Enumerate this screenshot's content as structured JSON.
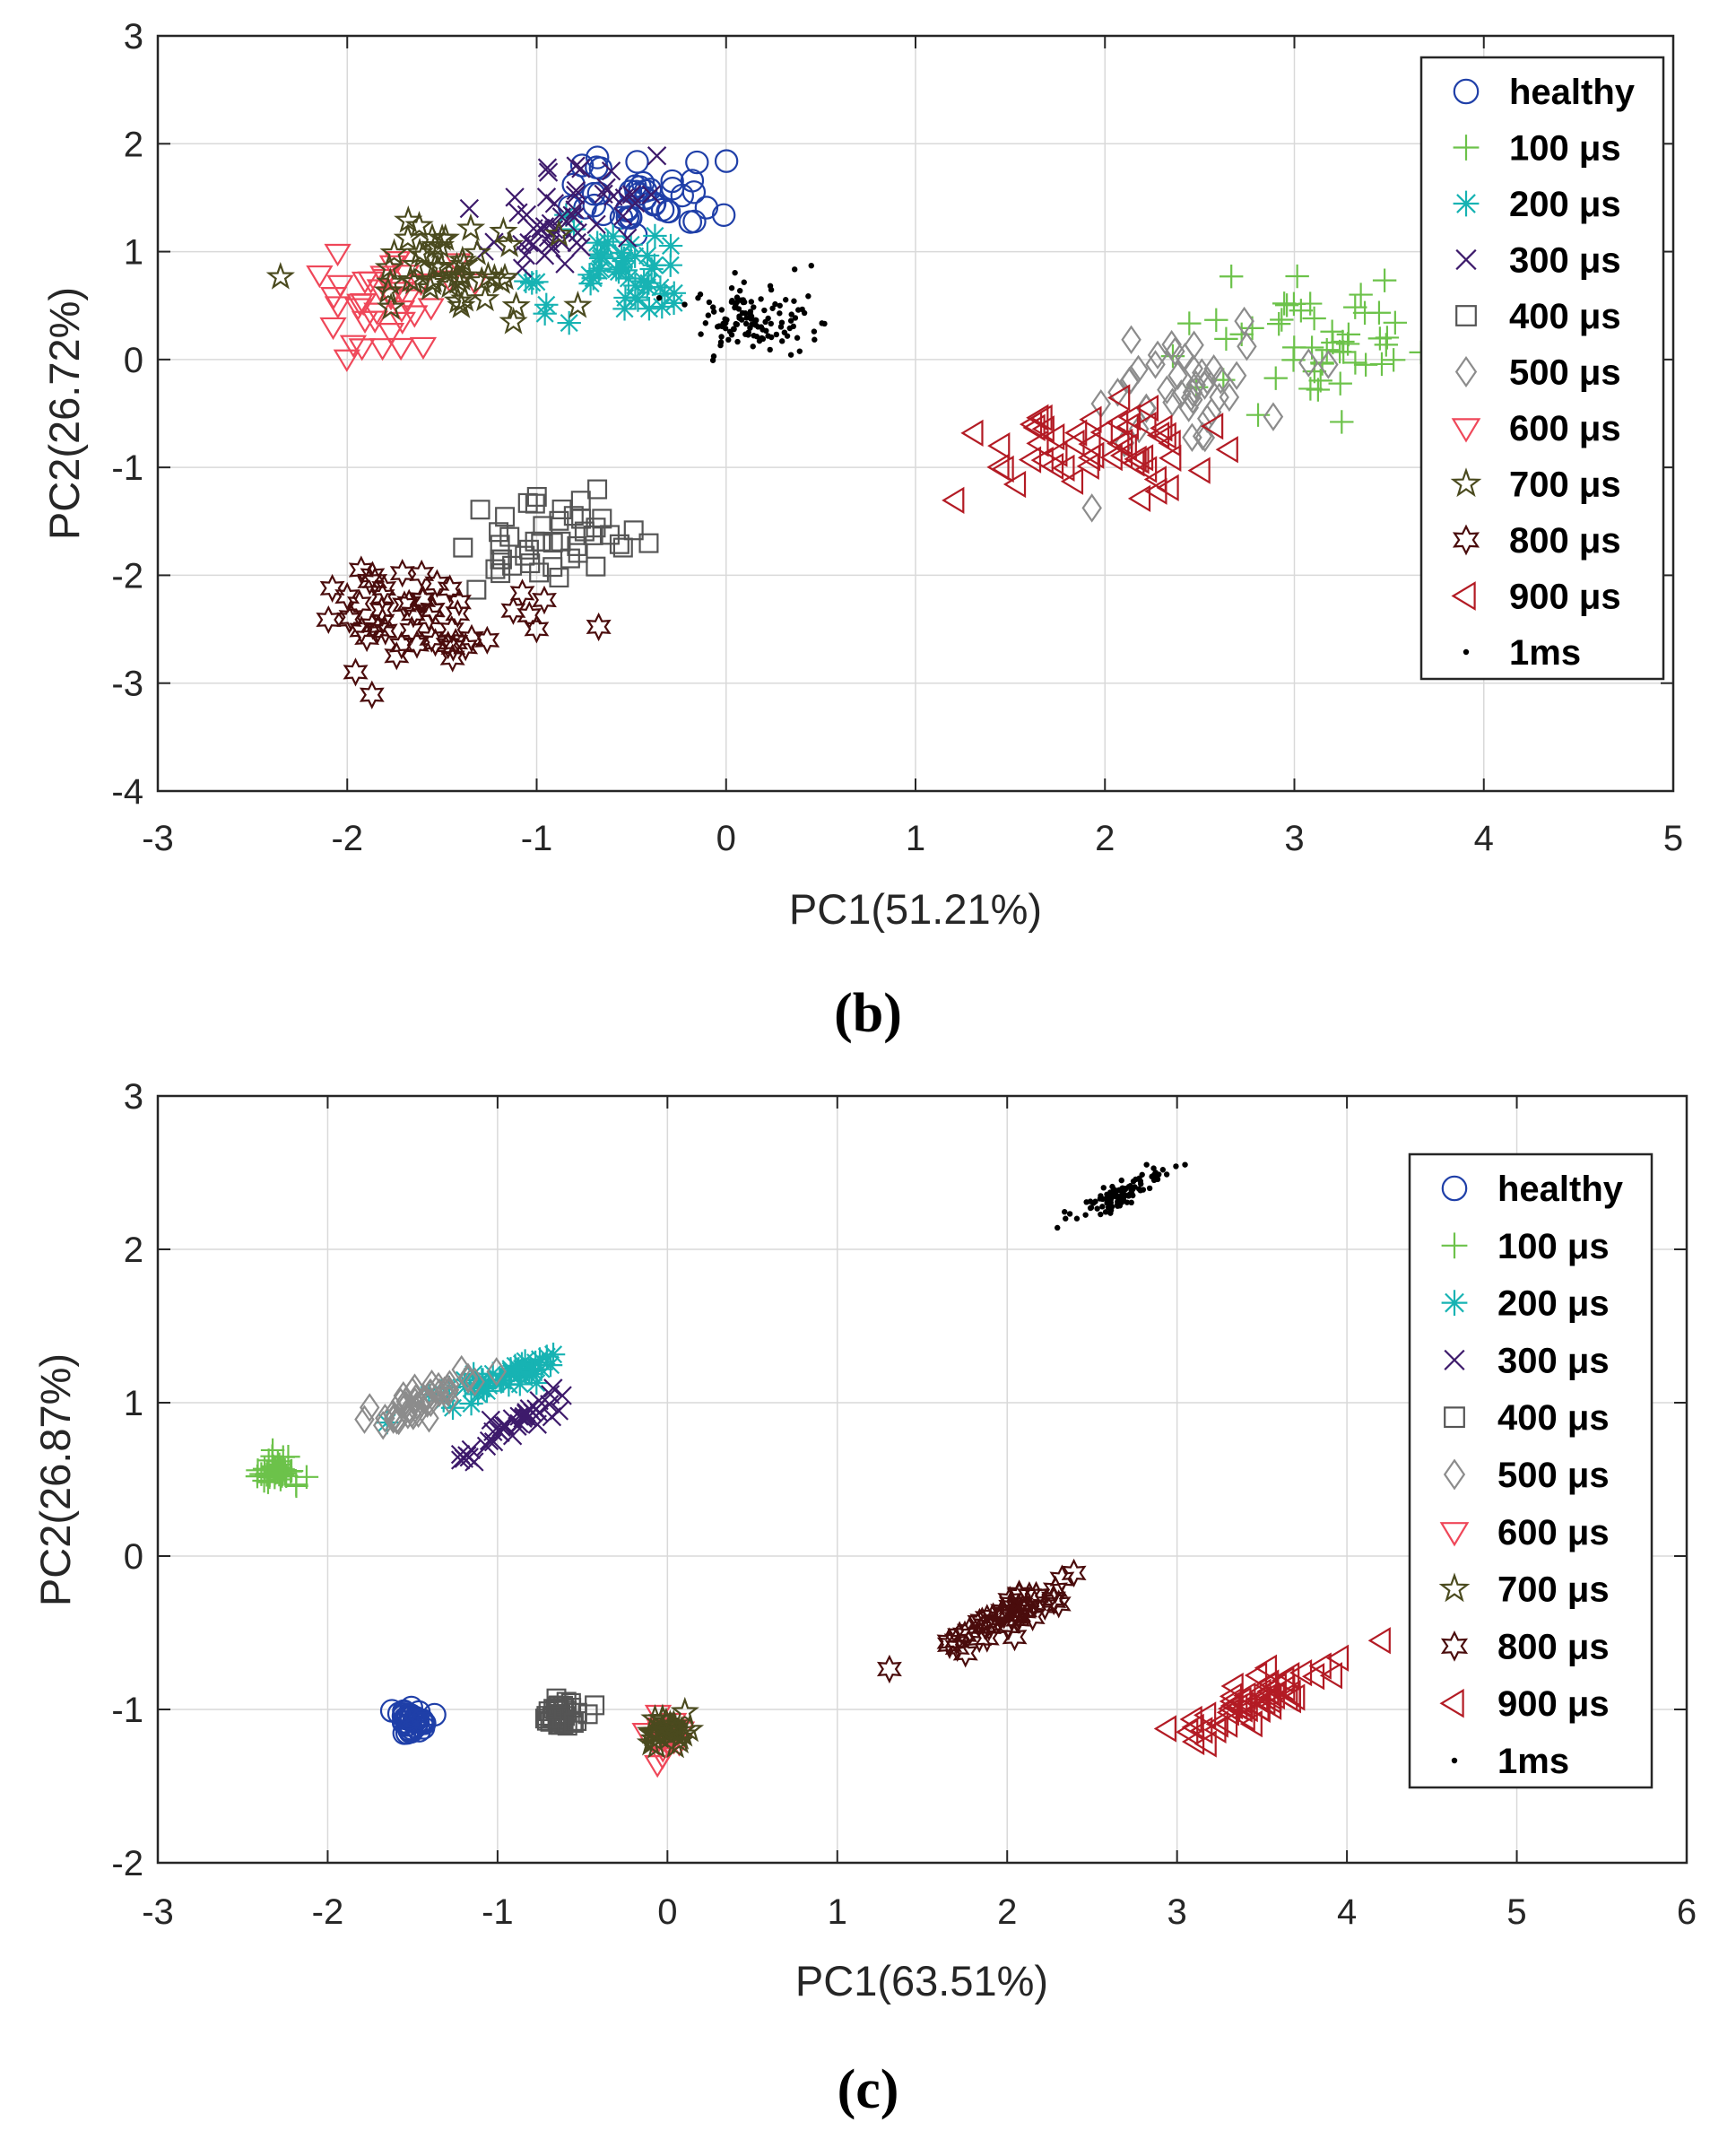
{
  "chart_data": [
    {
      "type": "scatter",
      "caption": "(b)",
      "xlabel": "PC1(51.21%)",
      "ylabel": "PC2(26.72%)",
      "xlim": [
        -3,
        5
      ],
      "ylim": [
        -4,
        3
      ],
      "xticks": [
        "-3",
        "-2",
        "-1",
        "0",
        "1",
        "2",
        "3",
        "4",
        "5"
      ],
      "yticks": [
        "-4",
        "-3",
        "-2",
        "-1",
        "0",
        "1",
        "2",
        "3"
      ],
      "grid": true,
      "legend_position": "top-right",
      "series": [
        {
          "name": "healthy",
          "marker": "circle",
          "color": "#1f3fa8",
          "cluster": {
            "cx": -0.45,
            "cy": 1.5,
            "sx": 0.22,
            "sy": 0.22,
            "rho": 0.2,
            "n": 45
          }
        },
        {
          "name": "100 μs",
          "marker": "plus",
          "color": "#6cc24a",
          "cluster": {
            "cx": 3.1,
            "cy": 0.1,
            "sx": 0.28,
            "sy": 0.3,
            "rho": 0.0,
            "n": 55
          }
        },
        {
          "name": "200 μs",
          "marker": "asterisk",
          "color": "#17b3b3",
          "cluster": {
            "cx": -0.6,
            "cy": 0.75,
            "sx": 0.25,
            "sy": 0.25,
            "rho": 0.3,
            "n": 50
          }
        },
        {
          "name": "300 μs",
          "marker": "cross",
          "color": "#3d1a6b",
          "cluster": {
            "cx": -0.8,
            "cy": 1.25,
            "sx": 0.25,
            "sy": 0.25,
            "rho": 0.3,
            "n": 50
          }
        },
        {
          "name": "400 μs",
          "marker": "square",
          "color": "#555555",
          "cluster": {
            "cx": -0.95,
            "cy": -1.75,
            "sx": 0.25,
            "sy": 0.22,
            "rho": 0.2,
            "n": 45
          }
        },
        {
          "name": "500 μs",
          "marker": "diamond",
          "color": "#8c8c8c",
          "cluster": {
            "cx": 2.45,
            "cy": -0.25,
            "sx": 0.28,
            "sy": 0.28,
            "rho": 0.0,
            "n": 45
          }
        },
        {
          "name": "600 μs",
          "marker": "triangle-down",
          "color": "#ef4759",
          "cluster": {
            "cx": -1.8,
            "cy": 0.55,
            "sx": 0.2,
            "sy": 0.22,
            "rho": 0.1,
            "n": 40
          }
        },
        {
          "name": "700 μs",
          "marker": "pentagram",
          "color": "#4a4a1e",
          "cluster": {
            "cx": -1.5,
            "cy": 0.8,
            "sx": 0.25,
            "sy": 0.22,
            "rho": 0.1,
            "n": 50
          }
        },
        {
          "name": "800 μs",
          "marker": "hexagram",
          "color": "#4a0c0c",
          "cluster": {
            "cx": -1.6,
            "cy": -2.4,
            "sx": 0.28,
            "sy": 0.25,
            "rho": 0.0,
            "n": 55
          }
        },
        {
          "name": "900 μs",
          "marker": "triangle-left",
          "color": "#b31b24",
          "cluster": {
            "cx": 2.0,
            "cy": -0.8,
            "sx": 0.3,
            "sy": 0.25,
            "rho": 0.1,
            "n": 55
          }
        },
        {
          "name": "1ms",
          "marker": "dot",
          "color": "#000000",
          "cluster": {
            "cx": 0.15,
            "cy": 0.4,
            "sx": 0.18,
            "sy": 0.15,
            "rho": 0.0,
            "n": 120
          }
        }
      ]
    },
    {
      "type": "scatter",
      "caption": "(c)",
      "xlabel": "PC1(63.51%)",
      "ylabel": "PC2(26.87%)",
      "xlim": [
        -3,
        6
      ],
      "ylim": [
        -2,
        3
      ],
      "xticks": [
        "-3",
        "-2",
        "-1",
        "0",
        "1",
        "2",
        "3",
        "4",
        "5",
        "6"
      ],
      "yticks": [
        "-2",
        "-1",
        "0",
        "1",
        "2",
        "3"
      ],
      "grid": true,
      "legend_position": "top-right",
      "series": [
        {
          "name": "healthy",
          "marker": "circle",
          "color": "#1f3fa8",
          "cluster": {
            "cx": -1.5,
            "cy": -1.07,
            "sx": 0.05,
            "sy": 0.05,
            "rho": 0.0,
            "n": 40
          }
        },
        {
          "name": "100 μs",
          "marker": "plus",
          "color": "#6cc24a",
          "cluster": {
            "cx": -2.3,
            "cy": 0.55,
            "sx": 0.06,
            "sy": 0.07,
            "rho": 0.0,
            "n": 40
          }
        },
        {
          "name": "200 μs",
          "marker": "asterisk",
          "color": "#17b3b3",
          "cluster": {
            "cx": -1.0,
            "cy": 1.15,
            "sx": 0.22,
            "sy": 0.1,
            "rho": 0.85,
            "n": 45
          }
        },
        {
          "name": "300 μs",
          "marker": "cross",
          "color": "#3d1a6b",
          "cluster": {
            "cx": -0.9,
            "cy": 0.85,
            "sx": 0.14,
            "sy": 0.1,
            "rho": 0.85,
            "n": 40
          }
        },
        {
          "name": "400 μs",
          "marker": "square",
          "color": "#555555",
          "cluster": {
            "cx": -0.62,
            "cy": -1.05,
            "sx": 0.06,
            "sy": 0.05,
            "rho": 0.0,
            "n": 40
          }
        },
        {
          "name": "500 μs",
          "marker": "diamond",
          "color": "#8c8c8c",
          "cluster": {
            "cx": -1.45,
            "cy": 1.0,
            "sx": 0.16,
            "sy": 0.1,
            "rho": 0.8,
            "n": 45
          }
        },
        {
          "name": "600 μs",
          "marker": "triangle-down",
          "color": "#ef4759",
          "cluster": {
            "cx": 0.0,
            "cy": -1.18,
            "sx": 0.06,
            "sy": 0.07,
            "rho": 0.0,
            "n": 30
          }
        },
        {
          "name": "700 μs",
          "marker": "pentagram",
          "color": "#4a4a1e",
          "cluster": {
            "cx": 0.0,
            "cy": -1.15,
            "sx": 0.06,
            "sy": 0.06,
            "rho": 0.0,
            "n": 30
          }
        },
        {
          "name": "800 μs",
          "marker": "hexagram",
          "color": "#4a0c0c",
          "cluster": {
            "cx": 2.0,
            "cy": -0.4,
            "sx": 0.22,
            "sy": 0.12,
            "rho": 0.9,
            "n": 50
          }
        },
        {
          "name": "900 μs",
          "marker": "triangle-left",
          "color": "#b31b24",
          "cluster": {
            "cx": 3.45,
            "cy": -0.95,
            "sx": 0.28,
            "sy": 0.15,
            "rho": 0.9,
            "n": 55
          }
        },
        {
          "name": "1ms",
          "marker": "dot",
          "color": "#000000",
          "cluster": {
            "cx": 2.65,
            "cy": 2.35,
            "sx": 0.13,
            "sy": 0.08,
            "rho": 0.85,
            "n": 110
          }
        }
      ]
    }
  ]
}
